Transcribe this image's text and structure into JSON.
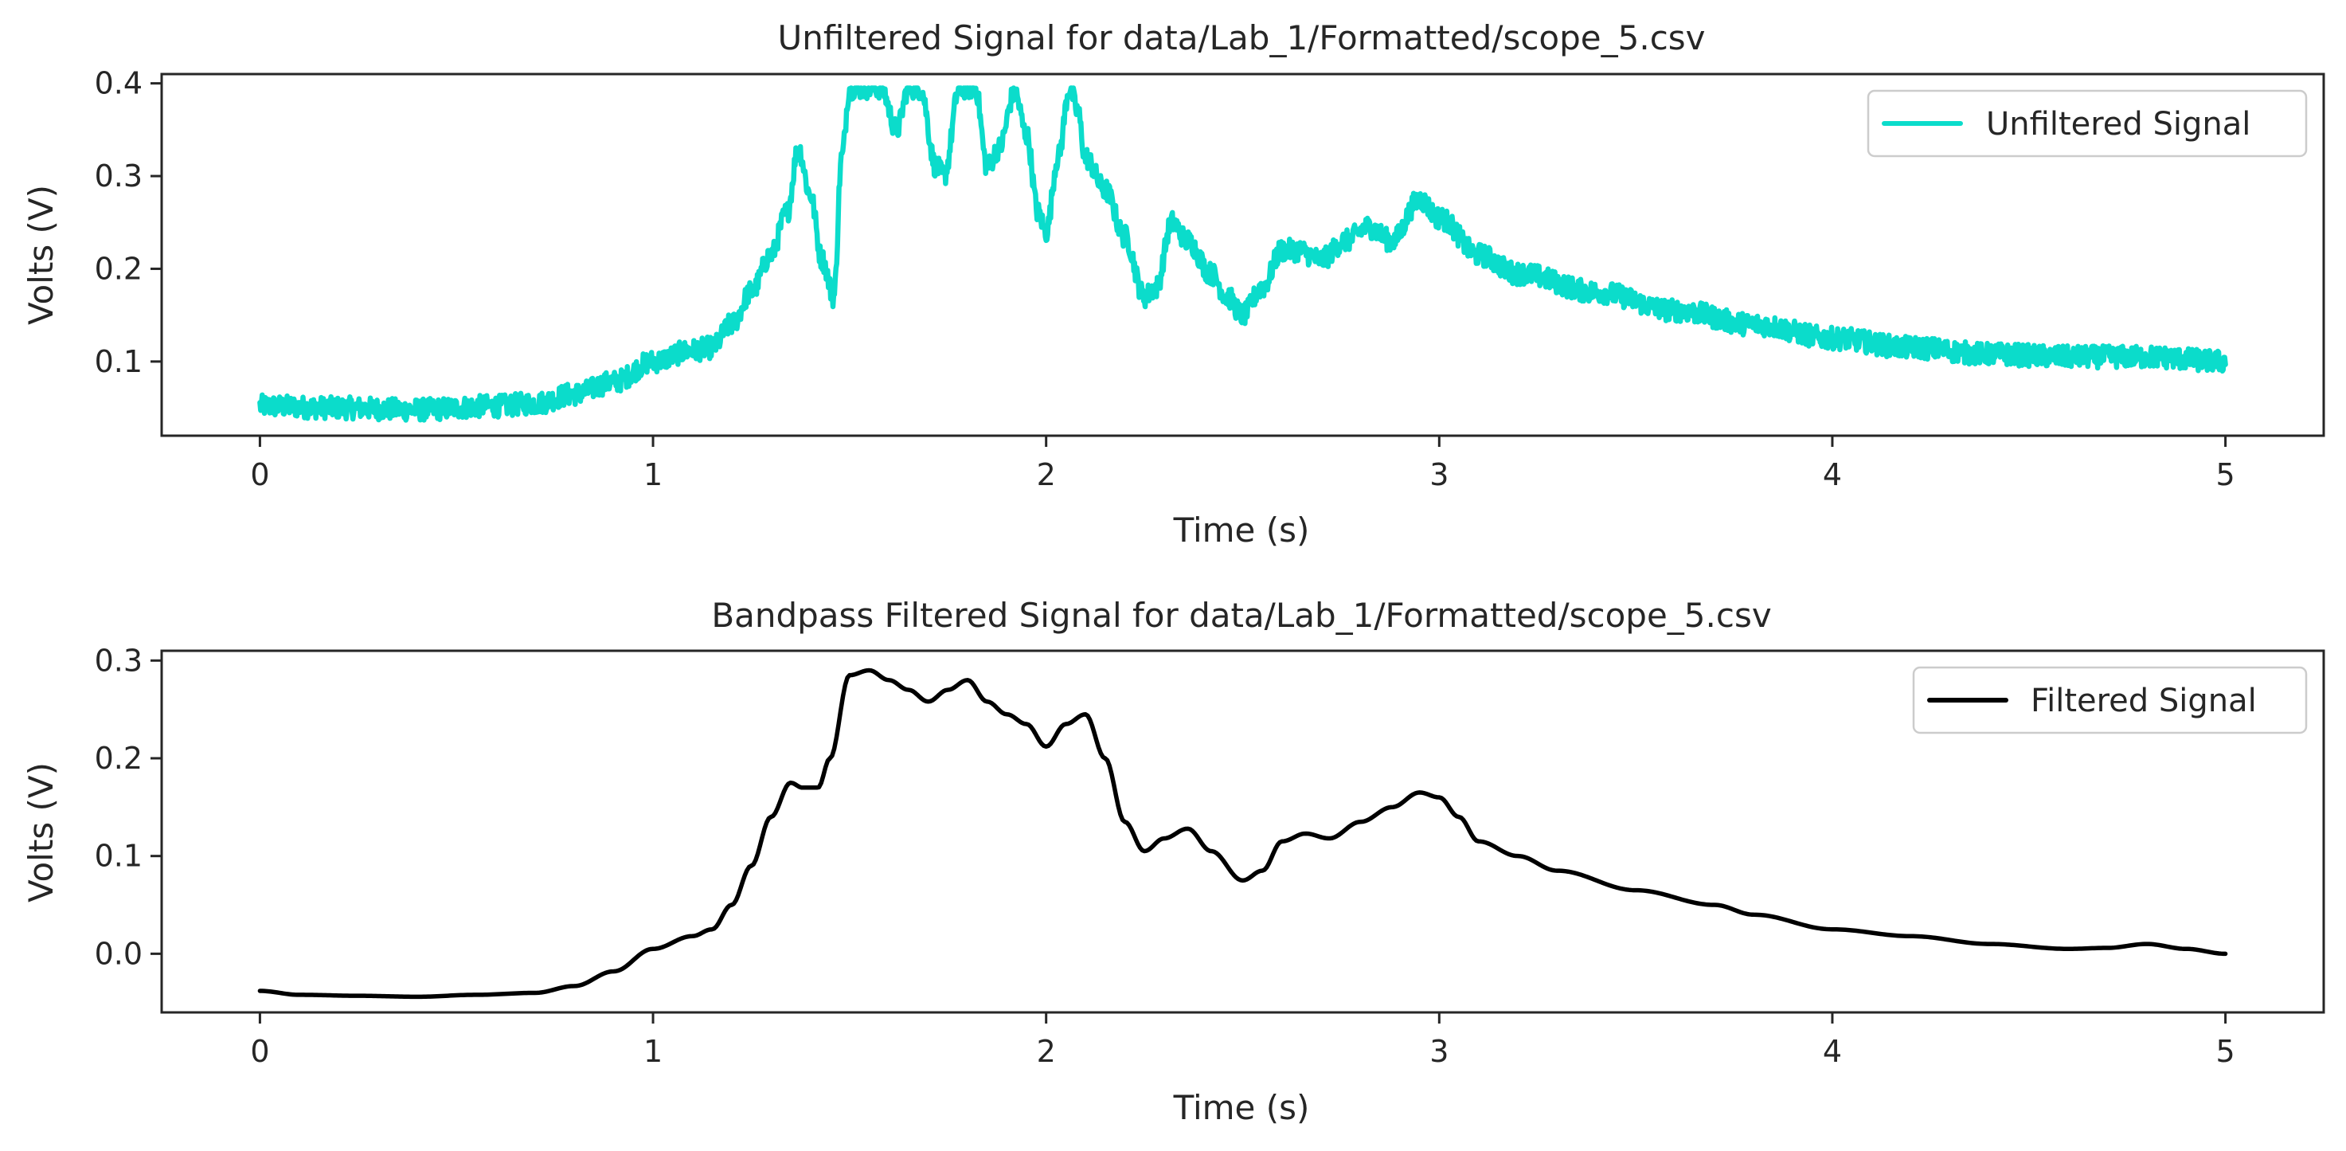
{
  "chart_data": [
    {
      "type": "line",
      "title": "Unfiltered Signal for data/Lab_1/Formatted/scope_5.csv",
      "xlabel": "Time (s)",
      "ylabel": "Volts (V)",
      "xlim": [
        -0.25,
        5.25
      ],
      "ylim": [
        0.02,
        0.41
      ],
      "xticks": [
        0,
        1,
        2,
        3,
        4,
        5
      ],
      "xtick_labels": [
        "0",
        "1",
        "2",
        "3",
        "4",
        "5"
      ],
      "yticks": [
        0.1,
        0.2,
        0.3,
        0.4
      ],
      "ytick_labels": [
        "0.1",
        "0.2",
        "0.3",
        "0.4"
      ],
      "legend_position": "upper right",
      "series": [
        {
          "name": "Unfiltered Signal",
          "color": "#0bdccb",
          "noise": 0.012,
          "x": [
            0,
            0.2,
            0.4,
            0.6,
            0.7,
            0.8,
            0.9,
            1.0,
            1.1,
            1.15,
            1.2,
            1.25,
            1.3,
            1.34,
            1.37,
            1.4,
            1.43,
            1.46,
            1.48,
            1.5,
            1.55,
            1.58,
            1.62,
            1.65,
            1.68,
            1.72,
            1.74,
            1.78,
            1.82,
            1.85,
            1.88,
            1.92,
            1.95,
            1.98,
            2.0,
            2.03,
            2.06,
            2.08,
            2.1,
            2.15,
            2.2,
            2.25,
            2.28,
            2.32,
            2.36,
            2.42,
            2.46,
            2.5,
            2.55,
            2.6,
            2.64,
            2.7,
            2.76,
            2.82,
            2.88,
            2.95,
            3.0,
            3.1,
            3.2,
            3.4,
            3.6,
            3.8,
            4.0,
            4.2,
            4.4,
            4.6,
            4.8,
            5.0
          ],
          "y": [
            0.052,
            0.05,
            0.048,
            0.052,
            0.055,
            0.065,
            0.078,
            0.1,
            0.112,
            0.115,
            0.14,
            0.175,
            0.215,
            0.26,
            0.33,
            0.28,
            0.21,
            0.17,
            0.32,
            0.395,
            0.395,
            0.395,
            0.35,
            0.395,
            0.395,
            0.31,
            0.3,
            0.395,
            0.395,
            0.31,
            0.33,
            0.39,
            0.345,
            0.26,
            0.24,
            0.32,
            0.395,
            0.37,
            0.32,
            0.285,
            0.235,
            0.17,
            0.18,
            0.25,
            0.23,
            0.195,
            0.17,
            0.15,
            0.18,
            0.22,
            0.22,
            0.21,
            0.23,
            0.245,
            0.23,
            0.275,
            0.255,
            0.215,
            0.195,
            0.175,
            0.155,
            0.14,
            0.125,
            0.115,
            0.108,
            0.105,
            0.105,
            0.1
          ]
        }
      ]
    },
    {
      "type": "line",
      "title": "Bandpass Filtered Signal for data/Lab_1/Formatted/scope_5.csv",
      "xlabel": "Time (s)",
      "ylabel": "Volts (V)",
      "xlim": [
        -0.25,
        5.25
      ],
      "ylim": [
        -0.06,
        0.31
      ],
      "xticks": [
        0,
        1,
        2,
        3,
        4,
        5
      ],
      "xtick_labels": [
        "0",
        "1",
        "2",
        "3",
        "4",
        "5"
      ],
      "yticks": [
        0.0,
        0.1,
        0.2,
        0.3
      ],
      "ytick_labels": [
        "0.0",
        "0.1",
        "0.2",
        "0.3"
      ],
      "legend_position": "upper right",
      "series": [
        {
          "name": "Filtered Signal",
          "color": "#000000",
          "noise": 0,
          "x": [
            0,
            0.1,
            0.25,
            0.4,
            0.55,
            0.7,
            0.8,
            0.9,
            1.0,
            1.1,
            1.15,
            1.2,
            1.25,
            1.3,
            1.35,
            1.38,
            1.42,
            1.45,
            1.5,
            1.55,
            1.6,
            1.65,
            1.7,
            1.75,
            1.8,
            1.85,
            1.9,
            1.95,
            2.0,
            2.05,
            2.1,
            2.15,
            2.2,
            2.25,
            2.3,
            2.36,
            2.42,
            2.5,
            2.55,
            2.6,
            2.66,
            2.72,
            2.8,
            2.88,
            2.95,
            3.0,
            3.05,
            3.1,
            3.2,
            3.3,
            3.5,
            3.7,
            3.8,
            4.0,
            4.2,
            4.4,
            4.6,
            4.7,
            4.8,
            4.9,
            5.0
          ],
          "y": [
            -0.038,
            -0.042,
            -0.043,
            -0.044,
            -0.042,
            -0.04,
            -0.033,
            -0.018,
            0.005,
            0.018,
            0.025,
            0.05,
            0.09,
            0.14,
            0.175,
            0.17,
            0.17,
            0.2,
            0.285,
            0.29,
            0.28,
            0.27,
            0.258,
            0.27,
            0.28,
            0.258,
            0.245,
            0.235,
            0.212,
            0.235,
            0.245,
            0.2,
            0.135,
            0.105,
            0.118,
            0.128,
            0.105,
            0.075,
            0.085,
            0.115,
            0.123,
            0.118,
            0.135,
            0.15,
            0.165,
            0.16,
            0.14,
            0.115,
            0.1,
            0.085,
            0.065,
            0.05,
            0.04,
            0.025,
            0.018,
            0.01,
            0.005,
            0.006,
            0.01,
            0.005,
            0.0
          ]
        }
      ]
    }
  ]
}
